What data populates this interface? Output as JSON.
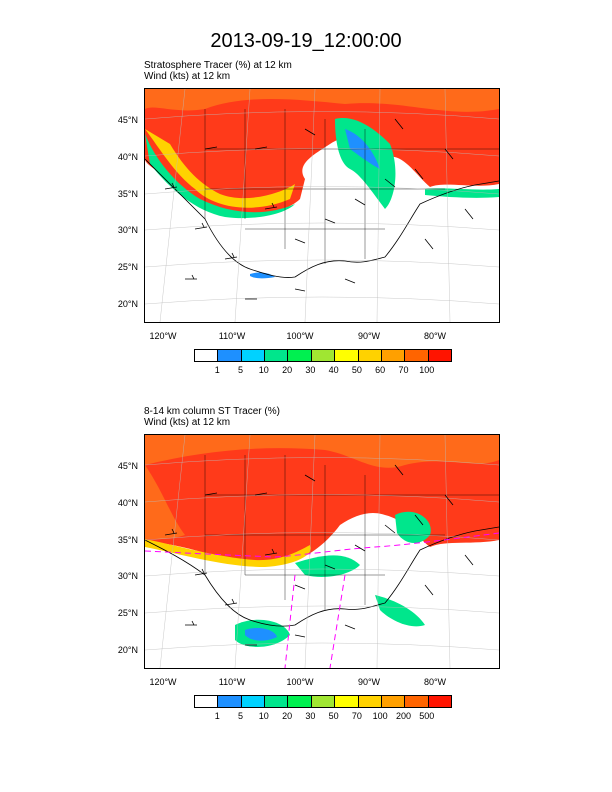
{
  "title": "2013-09-19_12:00:00",
  "panels": [
    {
      "subtitle_line1": "Stratosphere Tracer   (%)     at   12 km",
      "subtitle_line2": "Wind   (kts)     at   12 km",
      "lat_labels": [
        "45°N",
        "40°N",
        "35°N",
        "30°N",
        "25°N",
        "20°N"
      ],
      "lon_labels": [
        "120°W",
        "110°W",
        "100°W",
        "90°W",
        "80°W"
      ],
      "colorbar_labels": [
        "1",
        "5",
        "10",
        "20",
        "30",
        "40",
        "50",
        "60",
        "70",
        "100"
      ],
      "colorbar_colors": [
        "#ffffff",
        "#1e90ff",
        "#00d2ff",
        "#00e68c",
        "#00f050",
        "#a0e632",
        "#ffff00",
        "#ffd200",
        "#ffa000",
        "#ff6400",
        "#ff1400"
      ]
    },
    {
      "subtitle_line1": "8-14 km column ST Tracer   (%)",
      "subtitle_line2": "Wind   (kts)     at   12 km",
      "lat_labels": [
        "45°N",
        "40°N",
        "35°N",
        "30°N",
        "25°N",
        "20°N"
      ],
      "lon_labels": [
        "120°W",
        "110°W",
        "100°W",
        "90°W",
        "80°W"
      ],
      "colorbar_labels": [
        "1",
        "5",
        "10",
        "20",
        "30",
        "50",
        "70",
        "100",
        "200",
        "500"
      ],
      "colorbar_colors": [
        "#ffffff",
        "#1e90ff",
        "#00d2ff",
        "#00e68c",
        "#00f050",
        "#a0e632",
        "#ffff00",
        "#ffd200",
        "#ffa000",
        "#ff6400",
        "#ff1400"
      ]
    }
  ]
}
